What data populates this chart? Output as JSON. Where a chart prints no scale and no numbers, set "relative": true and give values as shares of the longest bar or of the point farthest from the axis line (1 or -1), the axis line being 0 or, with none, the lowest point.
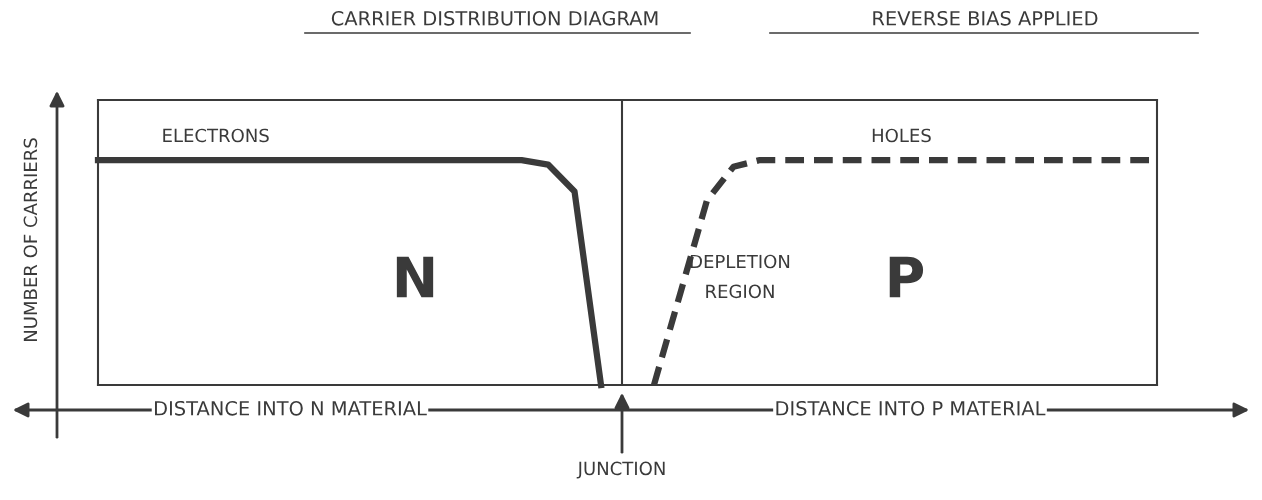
{
  "chart_data": {
    "type": "line",
    "relative": true,
    "title": "CARRIER DISTRIBUTION DIAGRAM",
    "subtitle": "REVERSE BIAS APPLIED",
    "ylabel": "NUMBER OF CARRIERS",
    "categories": [
      null,
      null,
      null,
      null,
      null,
      null,
      null,
      null,
      null,
      null,
      null,
      null,
      null,
      null,
      null,
      null,
      null,
      null,
      null,
      null,
      null,
      null,
      null,
      null,
      null,
      null,
      null,
      null,
      null,
      null,
      null,
      null,
      null,
      null,
      null,
      null,
      null,
      null,
      null,
      null,
      null
    ],
    "series": [
      {
        "name": "ELECTRONS",
        "color": "#3a3a3a",
        "line_style": "solid",
        "values": [
          1,
          1,
          1,
          1,
          1,
          1,
          1,
          1,
          1,
          1,
          1,
          1,
          1,
          1,
          1,
          1,
          1,
          0.98,
          0.86,
          0,
          null,
          null,
          null,
          null,
          null,
          null,
          null,
          null,
          null,
          null,
          null,
          null,
          null,
          null,
          null,
          null,
          null,
          null,
          null,
          null,
          null
        ]
      },
      {
        "name": "HOLES",
        "color": "#3a3a3a",
        "line_style": "dashed",
        "values": [
          null,
          null,
          null,
          null,
          null,
          null,
          null,
          null,
          null,
          null,
          null,
          null,
          null,
          null,
          null,
          null,
          null,
          null,
          null,
          null,
          null,
          0,
          0.41,
          0.82,
          0.97,
          1,
          1,
          1,
          1,
          1,
          1,
          1,
          1,
          1,
          1,
          1,
          1,
          1,
          1,
          1,
          1
        ]
      }
    ],
    "annotations": [
      "N",
      "P",
      "DEPLETION REGION",
      "DISTANCE INTO N MATERIAL",
      "DISTANCE INTO P MATERIAL",
      "JUNCTION"
    ],
    "legend": false,
    "marker": "none"
  }
}
